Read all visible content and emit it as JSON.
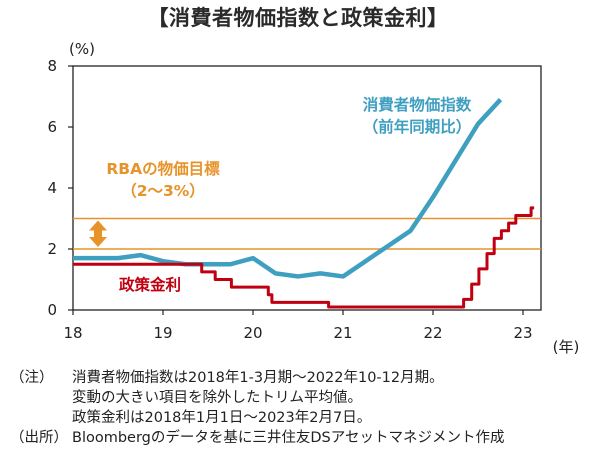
{
  "chart_data": {
    "type": "line",
    "title": "【消費者物価指数と政策金利】",
    "y_unit": "(%)",
    "x_unit": "(年)",
    "xlim": [
      2018,
      2023.2
    ],
    "ylim": [
      0,
      8
    ],
    "x_ticks": [
      {
        "value": 2018,
        "label": "18"
      },
      {
        "value": 2019,
        "label": "19"
      },
      {
        "value": 2020,
        "label": "20"
      },
      {
        "value": 2021,
        "label": "21"
      },
      {
        "value": 2022,
        "label": "22"
      },
      {
        "value": 2023,
        "label": "23"
      }
    ],
    "y_ticks": [
      0,
      2,
      4,
      6,
      8
    ],
    "target_band": {
      "label_line1": "RBAの物価目標",
      "label_line2": "（2～3%）",
      "low": 2,
      "high": 3,
      "color": "#e8932a"
    },
    "series": [
      {
        "name": "消費者物価指数",
        "name_line2": "（前年同期比）",
        "color": "#3f9fc0",
        "style": "line",
        "x": [
          2018.0,
          2018.25,
          2018.5,
          2018.75,
          2019.0,
          2019.25,
          2019.5,
          2019.75,
          2020.0,
          2020.25,
          2020.5,
          2020.75,
          2021.0,
          2021.25,
          2021.5,
          2021.75,
          2022.0,
          2022.25,
          2022.5,
          2022.75
        ],
        "values": [
          1.7,
          1.7,
          1.7,
          1.8,
          1.6,
          1.5,
          1.5,
          1.5,
          1.7,
          1.2,
          1.1,
          1.2,
          1.1,
          1.6,
          2.1,
          2.6,
          3.7,
          4.9,
          6.1,
          6.9
        ]
      },
      {
        "name": "政策金利",
        "color": "#c00010",
        "style": "step",
        "x": [
          2018.0,
          2019.43,
          2019.58,
          2019.76,
          2020.17,
          2020.21,
          2020.84,
          2022.34,
          2022.43,
          2022.51,
          2022.6,
          2022.68,
          2022.76,
          2022.84,
          2022.92,
          2023.09
        ],
        "values": [
          1.5,
          1.25,
          1.0,
          0.75,
          0.5,
          0.25,
          0.1,
          0.35,
          0.85,
          1.35,
          1.85,
          2.35,
          2.6,
          2.85,
          3.1,
          3.35
        ]
      }
    ]
  },
  "notes": {
    "note_label": "（注）",
    "note_line1": "消費者物価指数は2018年1-3月期～2022年10-12月期。",
    "note_line2": "変動の大きい項目を除外したトリム平均値。",
    "note_line3": "政策金利は2018年1月1日～2023年2月7日。",
    "source_label": "（出所）",
    "source_text": "Bloombergのデータを基に三井住友DSアセットマネジメント作成"
  }
}
